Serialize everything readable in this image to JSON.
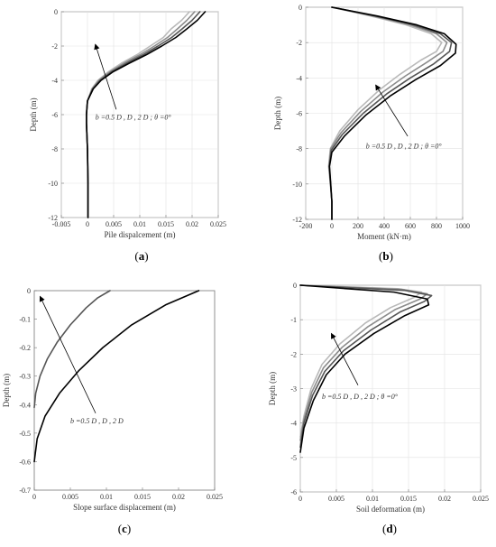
{
  "chart_data": [
    {
      "id": "a",
      "type": "line",
      "panel_label_pre": "(",
      "panel_label": "a",
      "panel_label_post": ")",
      "xlabel": "Pile dispalcement (m)",
      "ylabel": "Depth (m)",
      "xlim": [
        -0.005,
        0.025
      ],
      "ylim": [
        -12,
        0
      ],
      "xticks": [
        -0.005,
        0,
        0.005,
        0.01,
        0.015,
        0.02,
        0.025
      ],
      "xtick_labels": [
        "-0.005",
        "0",
        "0.005",
        "0.01",
        "0.015",
        "0.02",
        "0.025"
      ],
      "yticks": [
        0,
        -2,
        -4,
        -6,
        -8,
        -10,
        -12
      ],
      "ytick_labels": [
        "0",
        "-2",
        "-4",
        "-6",
        "-8",
        "-10",
        "-12"
      ],
      "grid": true,
      "annotation": "b =0.5  D , D , 2 D ; θ =0°",
      "arrow_from": [
        0.0055,
        -5.7
      ],
      "arrow_to": [
        0.0015,
        -1.9
      ],
      "annotation_pos": [
        0.0015,
        -6.3
      ],
      "series": [
        {
          "color": "#b9b9b9",
          "points": [
            [
              0.0001,
              -12
            ],
            [
              0.0001,
              -10
            ],
            [
              0.0,
              -8
            ],
            [
              -0.0002,
              -6.5
            ],
            [
              -0.0002,
              -6
            ],
            [
              0.0,
              -5.2
            ],
            [
              0.0008,
              -4.5
            ],
            [
              0.002,
              -4
            ],
            [
              0.004,
              -3.5
            ],
            [
              0.0065,
              -3
            ],
            [
              0.0095,
              -2.5
            ],
            [
              0.012,
              -2
            ],
            [
              0.0145,
              -1.5
            ],
            [
              0.016,
              -1
            ],
            [
              0.018,
              -0.5
            ],
            [
              0.0195,
              0
            ]
          ]
        },
        {
          "color": "#8c8c8c",
          "points": [
            [
              0.0001,
              -12
            ],
            [
              0.0001,
              -10
            ],
            [
              0.0,
              -8
            ],
            [
              -0.0002,
              -6.5
            ],
            [
              -0.0002,
              -6
            ],
            [
              0.0,
              -5.2
            ],
            [
              0.0009,
              -4.5
            ],
            [
              0.0022,
              -4
            ],
            [
              0.0043,
              -3.5
            ],
            [
              0.007,
              -3
            ],
            [
              0.0101,
              -2.5
            ],
            [
              0.0128,
              -2
            ],
            [
              0.0153,
              -1.5
            ],
            [
              0.0172,
              -1
            ],
            [
              0.019,
              -0.5
            ],
            [
              0.0205,
              0
            ]
          ]
        },
        {
          "color": "#555555",
          "points": [
            [
              0.0001,
              -12
            ],
            [
              0.0001,
              -10
            ],
            [
              0.0,
              -8
            ],
            [
              -0.0002,
              -6.5
            ],
            [
              -0.0002,
              -6
            ],
            [
              0.0,
              -5.2
            ],
            [
              0.001,
              -4.5
            ],
            [
              0.0024,
              -4
            ],
            [
              0.0046,
              -3.5
            ],
            [
              0.0075,
              -3
            ],
            [
              0.0107,
              -2.5
            ],
            [
              0.0135,
              -2
            ],
            [
              0.0161,
              -1.5
            ],
            [
              0.0181,
              -1
            ],
            [
              0.02,
              -0.5
            ],
            [
              0.0215,
              0
            ]
          ]
        },
        {
          "color": "#000000",
          "points": [
            [
              0.0001,
              -12
            ],
            [
              0.0001,
              -10
            ],
            [
              0.0,
              -8
            ],
            [
              -0.0002,
              -6.5
            ],
            [
              -0.0002,
              -6
            ],
            [
              0.0,
              -5.2
            ],
            [
              0.0011,
              -4.5
            ],
            [
              0.0026,
              -4
            ],
            [
              0.0049,
              -3.5
            ],
            [
              0.008,
              -3
            ],
            [
              0.0113,
              -2.5
            ],
            [
              0.0142,
              -2
            ],
            [
              0.0169,
              -1.5
            ],
            [
              0.019,
              -1
            ],
            [
              0.021,
              -0.5
            ],
            [
              0.0225,
              0
            ]
          ]
        }
      ]
    },
    {
      "id": "b",
      "type": "line",
      "panel_label_pre": "(",
      "panel_label": "b",
      "panel_label_post": ")",
      "xlabel": "Moment (kN·m)",
      "ylabel": "Depth (m)",
      "xlim": [
        -200,
        1000
      ],
      "ylim": [
        -12,
        0
      ],
      "xticks": [
        -200,
        0,
        200,
        400,
        600,
        800,
        1000
      ],
      "xtick_labels": [
        "-200",
        "0",
        "200",
        "400",
        "600",
        "800",
        "1000"
      ],
      "yticks": [
        0,
        -2,
        -4,
        -6,
        -8,
        -10,
        -12
      ],
      "ytick_labels": [
        "0",
        "-2",
        "-4",
        "-6",
        "-8",
        "-10",
        "-12"
      ],
      "grid": true,
      "annotation": "b =0.5  D , D , 2 D ; θ =0°",
      "arrow_from": [
        580,
        -7.3
      ],
      "arrow_to": [
        335,
        -4.4
      ],
      "annotation_pos": [
        260,
        -8.0
      ],
      "series": [
        {
          "color": "#b9b9b9",
          "points": [
            [
              0,
              0
            ],
            [
              300,
              -0.5
            ],
            [
              570,
              -1
            ],
            [
              760,
              -1.5
            ],
            [
              840,
              -2
            ],
            [
              800,
              -2.5
            ],
            [
              680,
              -3
            ],
            [
              520,
              -3.8
            ],
            [
              360,
              -4.7
            ],
            [
              200,
              -5.8
            ],
            [
              60,
              -7
            ],
            [
              -12,
              -8
            ],
            [
              -25,
              -9
            ],
            [
              -12,
              -10
            ],
            [
              0,
              -11
            ],
            [
              0,
              -12
            ]
          ]
        },
        {
          "color": "#8c8c8c",
          "points": [
            [
              0,
              0
            ],
            [
              320,
              -0.5
            ],
            [
              600,
              -1
            ],
            [
              800,
              -1.5
            ],
            [
              880,
              -2
            ],
            [
              850,
              -2.5
            ],
            [
              730,
              -3.1
            ],
            [
              560,
              -3.9
            ],
            [
              390,
              -4.8
            ],
            [
              220,
              -5.9
            ],
            [
              70,
              -7.1
            ],
            [
              -8,
              -8
            ],
            [
              -22,
              -9
            ],
            [
              -10,
              -10
            ],
            [
              0,
              -11
            ],
            [
              0,
              -12
            ]
          ]
        },
        {
          "color": "#555555",
          "points": [
            [
              0,
              0
            ],
            [
              335,
              -0.5
            ],
            [
              625,
              -1
            ],
            [
              830,
              -1.5
            ],
            [
              915,
              -2
            ],
            [
              900,
              -2.5
            ],
            [
              780,
              -3.2
            ],
            [
              600,
              -4
            ],
            [
              420,
              -4.9
            ],
            [
              240,
              -6
            ],
            [
              80,
              -7.2
            ],
            [
              -5,
              -8.1
            ],
            [
              -20,
              -9
            ],
            [
              -10,
              -10
            ],
            [
              0,
              -11
            ],
            [
              0,
              -12
            ]
          ]
        },
        {
          "color": "#000000",
          "points": [
            [
              0,
              0
            ],
            [
              350,
              -0.5
            ],
            [
              650,
              -1
            ],
            [
              860,
              -1.5
            ],
            [
              950,
              -2.1
            ],
            [
              945,
              -2.6
            ],
            [
              830,
              -3.3
            ],
            [
              640,
              -4.1
            ],
            [
              450,
              -5
            ],
            [
              260,
              -6.1
            ],
            [
              95,
              -7.3
            ],
            [
              0,
              -8.2
            ],
            [
              -18,
              -9
            ],
            [
              -9,
              -10
            ],
            [
              0,
              -11
            ],
            [
              0,
              -12
            ]
          ]
        }
      ]
    },
    {
      "id": "c",
      "type": "line",
      "panel_label_pre": "(",
      "panel_label": "c",
      "panel_label_post": ")",
      "xlabel": "Slope surface displacement (m)",
      "ylabel": "Depth (m)",
      "xlim": [
        0,
        0.025
      ],
      "ylim": [
        -0.7,
        0
      ],
      "xticks": [
        0,
        0.005,
        0.01,
        0.015,
        0.02,
        0.025
      ],
      "xtick_labels": [
        "0",
        "0.005",
        "0.01",
        "0.015",
        "0.02",
        "0.025"
      ],
      "yticks": [
        0,
        -0.1,
        -0.2,
        -0.3,
        -0.4,
        -0.5,
        -0.6,
        -0.7
      ],
      "ytick_labels": [
        "0",
        "-0.1",
        "-0.2",
        "-0.3",
        "-0.4",
        "-0.5",
        "-0.6",
        "-0.7"
      ],
      "grid": false,
      "annotation": "b =0.5  D , D , 2 D",
      "arrow_from": [
        0.0085,
        -0.43
      ],
      "arrow_to": [
        0.0008,
        -0.02
      ],
      "annotation_pos": [
        0.005,
        -0.465
      ],
      "series": [
        {
          "color": "#555555",
          "points": [
            [
              0.0,
              -0.41
            ],
            [
              0.0002,
              -0.36
            ],
            [
              0.0008,
              -0.3
            ],
            [
              0.0018,
              -0.24
            ],
            [
              0.0032,
              -0.18
            ],
            [
              0.005,
              -0.12
            ],
            [
              0.0072,
              -0.06
            ],
            [
              0.0088,
              -0.025
            ],
            [
              0.0105,
              0
            ]
          ]
        },
        {
          "color": "#000000",
          "points": [
            [
              0.0,
              -0.6
            ],
            [
              0.0004,
              -0.52
            ],
            [
              0.0015,
              -0.44
            ],
            [
              0.0035,
              -0.36
            ],
            [
              0.0062,
              -0.28
            ],
            [
              0.0095,
              -0.2
            ],
            [
              0.0135,
              -0.12
            ],
            [
              0.0182,
              -0.05
            ],
            [
              0.0228,
              0
            ]
          ]
        }
      ]
    },
    {
      "id": "d",
      "type": "line",
      "panel_label_pre": "(",
      "panel_label": "d",
      "panel_label_post": ")",
      "xlabel": "Soil deformation (m)",
      "ylabel": "Depth (m)",
      "xlim": [
        0,
        0.025
      ],
      "ylim": [
        -6,
        0
      ],
      "xticks": [
        0,
        0.005,
        0.01,
        0.015,
        0.02,
        0.025
      ],
      "xtick_labels": [
        "0",
        "0.005",
        "0.01",
        "0.015",
        "0.02",
        "0.025"
      ],
      "yticks": [
        0,
        -1,
        -2,
        -3,
        -4,
        -5,
        -6
      ],
      "ytick_labels": [
        "0",
        "-1",
        "-2",
        "-3",
        "-4",
        "-5",
        "-6"
      ],
      "grid": true,
      "annotation": "b =0.5  D , D , 2 D ; θ =0°",
      "arrow_from": [
        0.008,
        -2.9
      ],
      "arrow_to": [
        0.0043,
        -1.4
      ],
      "annotation_pos": [
        0.003,
        -3.3
      ],
      "series": [
        {
          "color": "#b9b9b9",
          "points": [
            [
              0.0,
              -4.4
            ],
            [
              0.0005,
              -3.8
            ],
            [
              0.0015,
              -3
            ],
            [
              0.003,
              -2.3
            ],
            [
              0.0055,
              -1.7
            ],
            [
              0.009,
              -1.1
            ],
            [
              0.0125,
              -0.65
            ],
            [
              0.0158,
              -0.35
            ],
            [
              0.0168,
              -0.2
            ],
            [
              0.0135,
              -0.1
            ],
            [
              0.0,
              0
            ]
          ]
        },
        {
          "color": "#8c8c8c",
          "points": [
            [
              0.0,
              -4.5
            ],
            [
              0.0005,
              -3.9
            ],
            [
              0.0016,
              -3.1
            ],
            [
              0.0032,
              -2.4
            ],
            [
              0.0058,
              -1.8
            ],
            [
              0.0094,
              -1.2
            ],
            [
              0.0132,
              -0.7
            ],
            [
              0.0166,
              -0.4
            ],
            [
              0.0176,
              -0.25
            ],
            [
              0.014,
              -0.12
            ],
            [
              0.0,
              0
            ]
          ]
        },
        {
          "color": "#555555",
          "points": [
            [
              0.0,
              -4.7
            ],
            [
              0.0005,
              -4.0
            ],
            [
              0.0017,
              -3.2
            ],
            [
              0.0034,
              -2.5
            ],
            [
              0.006,
              -1.9
            ],
            [
              0.0098,
              -1.3
            ],
            [
              0.0138,
              -0.78
            ],
            [
              0.0172,
              -0.47
            ],
            [
              0.0182,
              -0.3
            ],
            [
              0.0145,
              -0.15
            ],
            [
              0.0,
              0
            ]
          ]
        },
        {
          "color": "#000000",
          "points": [
            [
              0.0,
              -4.85
            ],
            [
              0.0005,
              -4.15
            ],
            [
              0.0018,
              -3.35
            ],
            [
              0.0036,
              -2.6
            ],
            [
              0.0062,
              -2.0
            ],
            [
              0.0102,
              -1.4
            ],
            [
              0.0145,
              -0.88
            ],
            [
              0.0178,
              -0.57
            ],
            [
              0.0176,
              -0.4
            ],
            [
              0.013,
              -0.2
            ],
            [
              0.0,
              0
            ]
          ]
        }
      ]
    }
  ]
}
